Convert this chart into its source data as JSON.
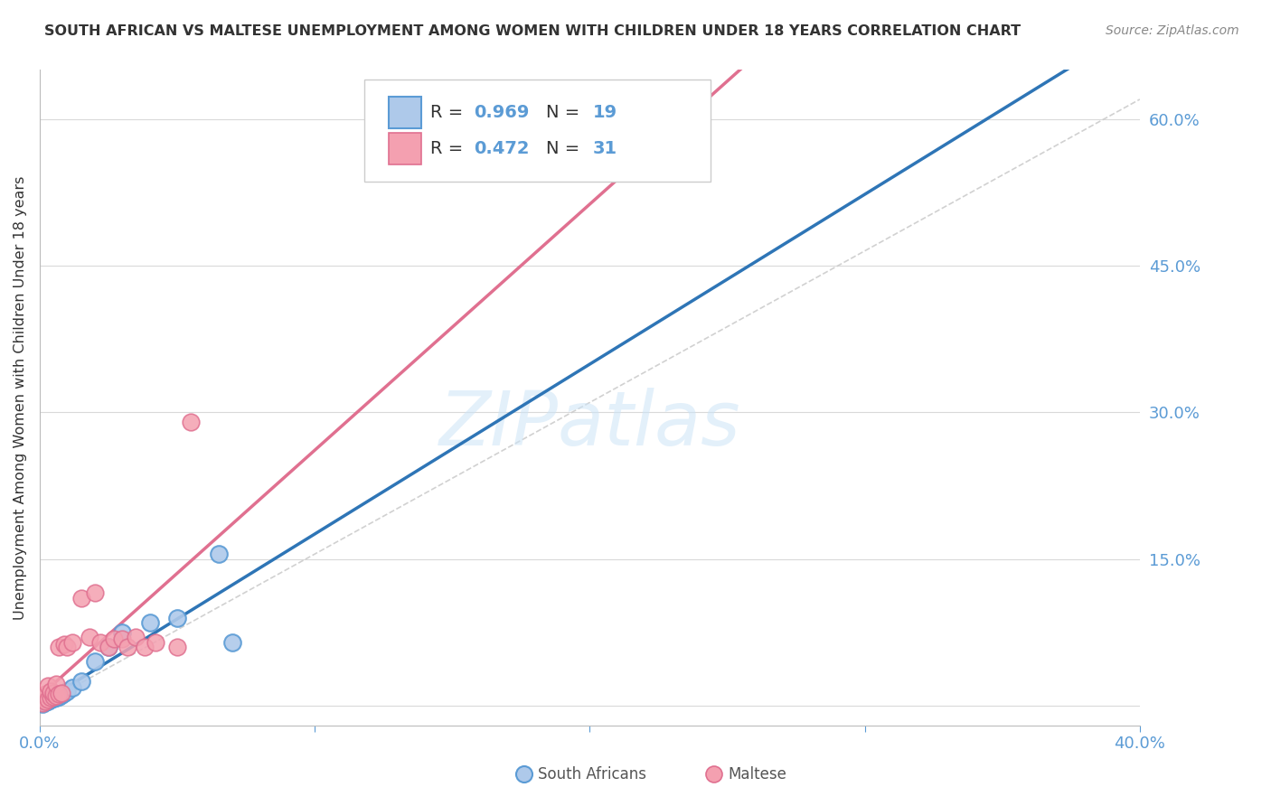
{
  "title": "SOUTH AFRICAN VS MALTESE UNEMPLOYMENT AMONG WOMEN WITH CHILDREN UNDER 18 YEARS CORRELATION CHART",
  "source": "Source: ZipAtlas.com",
  "ylabel": "Unemployment Among Women with Children Under 18 years",
  "watermark": "ZIPatlas",
  "legend_r1": "0.969",
  "legend_n1": "19",
  "legend_r2": "0.472",
  "legend_n2": "31",
  "legend_label1": "South Africans",
  "legend_label2": "Maltese",
  "color_blue": "#5b9bd5",
  "color_blue_light": "#aec9ea",
  "color_pink": "#f4a0b0",
  "color_pink_line": "#e07090",
  "color_blue_line": "#2e75b6",
  "color_axis": "#5b9bd5",
  "ytick_labels": [
    "",
    "15.0%",
    "30.0%",
    "45.0%",
    "60.0%"
  ],
  "ytick_values": [
    0.0,
    0.15,
    0.3,
    0.45,
    0.6
  ],
  "xtick_vals": [
    0.0,
    0.1,
    0.2,
    0.3,
    0.4
  ],
  "xlim": [
    0.0,
    0.4
  ],
  "ylim": [
    -0.02,
    0.65
  ],
  "sa_x": [
    0.001,
    0.002,
    0.003,
    0.004,
    0.005,
    0.006,
    0.007,
    0.008,
    0.009,
    0.01,
    0.012,
    0.015,
    0.02,
    0.025,
    0.03,
    0.04,
    0.05,
    0.065,
    0.07
  ],
  "sa_y": [
    0.002,
    0.004,
    0.005,
    0.006,
    0.007,
    0.008,
    0.009,
    0.011,
    0.013,
    0.015,
    0.018,
    0.025,
    0.045,
    0.06,
    0.075,
    0.085,
    0.09,
    0.155,
    0.065
  ],
  "maltese_x": [
    0.001,
    0.001,
    0.002,
    0.002,
    0.003,
    0.003,
    0.004,
    0.004,
    0.005,
    0.005,
    0.006,
    0.006,
    0.007,
    0.007,
    0.008,
    0.009,
    0.01,
    0.012,
    0.015,
    0.018,
    0.02,
    0.022,
    0.025,
    0.027,
    0.03,
    0.032,
    0.035,
    0.038,
    0.042,
    0.05,
    0.055
  ],
  "maltese_y": [
    0.003,
    0.008,
    0.005,
    0.012,
    0.006,
    0.02,
    0.008,
    0.015,
    0.009,
    0.013,
    0.01,
    0.022,
    0.012,
    0.06,
    0.013,
    0.063,
    0.06,
    0.065,
    0.11,
    0.07,
    0.115,
    0.065,
    0.06,
    0.068,
    0.068,
    0.06,
    0.07,
    0.06,
    0.065,
    0.06,
    0.29
  ],
  "background_color": "#ffffff",
  "grid_color": "#d9d9d9"
}
